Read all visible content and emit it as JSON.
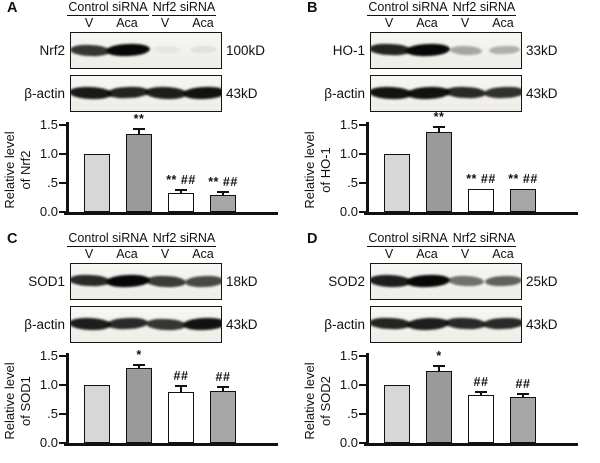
{
  "panels": [
    {
      "letter": "A",
      "groups": [
        "Control siRNA",
        "Nrf2 siRNA"
      ],
      "lanes": [
        "V",
        "Aca",
        "V",
        "Aca"
      ],
      "blots": [
        {
          "label": "Nrf2",
          "molecular_weight": "100kD",
          "band_intensities": [
            0.8,
            1.0,
            0.05,
            0.07
          ]
        },
        {
          "label": "β-actin",
          "molecular_weight": "43kD",
          "band_intensities": [
            0.92,
            0.88,
            0.9,
            0.95
          ]
        }
      ]
    },
    {
      "letter": "B",
      "groups": [
        "Control siRNA",
        "Nrf2 siRNA"
      ],
      "lanes": [
        "V",
        "Aca",
        "V",
        "Aca"
      ],
      "blots": [
        {
          "label": "HO-1",
          "molecular_weight": "33kD",
          "band_intensities": [
            0.88,
            1.0,
            0.32,
            0.28
          ]
        },
        {
          "label": "β-actin",
          "molecular_weight": "43kD",
          "band_intensities": [
            0.95,
            0.95,
            0.85,
            0.82
          ]
        }
      ]
    },
    {
      "letter": "C",
      "groups": [
        "Control siRNA",
        "Nrf2 siRNA"
      ],
      "lanes": [
        "V",
        "Aca",
        "V",
        "Aca"
      ],
      "blots": [
        {
          "label": "SOD1",
          "molecular_weight": "18kD",
          "band_intensities": [
            0.85,
            1.0,
            0.78,
            0.72
          ]
        },
        {
          "label": "β-actin",
          "molecular_weight": "43kD",
          "band_intensities": [
            0.9,
            0.85,
            0.8,
            0.95
          ]
        }
      ]
    },
    {
      "letter": "D",
      "groups": [
        "Control siRNA",
        "Nrf2 siRNA"
      ],
      "lanes": [
        "V",
        "Aca",
        "V",
        "Aca"
      ],
      "blots": [
        {
          "label": "SOD2",
          "molecular_weight": "25kD",
          "band_intensities": [
            0.9,
            1.0,
            0.55,
            0.62
          ]
        },
        {
          "label": "β-actin",
          "molecular_weight": "43kD",
          "band_intensities": [
            0.88,
            0.9,
            0.85,
            0.85
          ]
        }
      ]
    }
  ],
  "chart_data": [
    {
      "type": "bar",
      "panel": "A",
      "ylabel": "Relative level of Nrf2",
      "ylabel_line1": "Relative level",
      "ylabel_line2": "of Nrf2",
      "categories": [
        "V (Control siRNA)",
        "Aca (Control siRNA)",
        "V (Nrf2 siRNA)",
        "Aca (Nrf2 siRNA)"
      ],
      "values": [
        1.0,
        1.35,
        0.32,
        0.3
      ],
      "errors": [
        0,
        0.08,
        0.06,
        0.04
      ],
      "significance": [
        "",
        "**",
        "** ##",
        "** ##"
      ],
      "yticks": [
        "0.0",
        ".5",
        "1.0",
        "1.5"
      ],
      "ytick_values": [
        0,
        0.5,
        1.0,
        1.5
      ],
      "ylim": [
        0,
        1.6
      ],
      "grid": false,
      "legend": false,
      "bar_colors": [
        "#d7d7d7",
        "#9a9a9a",
        "#ffffff",
        "#a6a6a6"
      ],
      "bar_border_color": "#111111"
    },
    {
      "type": "bar",
      "panel": "B",
      "ylabel": "Relative level of HO-1",
      "ylabel_line1": "Relative level",
      "ylabel_line2": "of HO-1",
      "categories": [
        "V (Control siRNA)",
        "Aca (Control siRNA)",
        "V (Nrf2 siRNA)",
        "Aca (Nrf2 siRNA)"
      ],
      "values": [
        1.0,
        1.38,
        0.4,
        0.39
      ],
      "errors": [
        0,
        0.08,
        0,
        0.01
      ],
      "significance": [
        "",
        "**",
        "** ##",
        "** ##"
      ],
      "yticks": [
        "0.0",
        ".5",
        "1.0",
        "1.5"
      ],
      "ytick_values": [
        0,
        0.5,
        1.0,
        1.5
      ],
      "ylim": [
        0,
        1.6
      ],
      "grid": false,
      "legend": false,
      "bar_colors": [
        "#d7d7d7",
        "#9a9a9a",
        "#ffffff",
        "#a6a6a6"
      ],
      "bar_border_color": "#111111"
    },
    {
      "type": "bar",
      "panel": "C",
      "ylabel": "Relative level of SOD1",
      "ylabel_line1": "Relative level",
      "ylabel_line2": "of SOD1",
      "categories": [
        "V (Control siRNA)",
        "Aca (Control siRNA)",
        "V (Nrf2 siRNA)",
        "Aca (Nrf2 siRNA)"
      ],
      "values": [
        1.0,
        1.3,
        0.88,
        0.89
      ],
      "errors": [
        0,
        0.05,
        0.1,
        0.07
      ],
      "significance": [
        "",
        "*",
        "##",
        "##"
      ],
      "yticks": [
        "0.0",
        ".5",
        "1.0",
        "1.5"
      ],
      "ytick_values": [
        0,
        0.5,
        1.0,
        1.5
      ],
      "ylim": [
        0,
        1.6
      ],
      "grid": false,
      "legend": false,
      "bar_colors": [
        "#d7d7d7",
        "#9a9a9a",
        "#ffffff",
        "#a6a6a6"
      ],
      "bar_border_color": "#111111"
    },
    {
      "type": "bar",
      "panel": "D",
      "ylabel": "Relative level of SOD2",
      "ylabel_line1": "Relative level",
      "ylabel_line2": "of SOD2",
      "categories": [
        "V (Control siRNA)",
        "Aca (Control siRNA)",
        "V (Nrf2 siRNA)",
        "Aca (Nrf2 siRNA)"
      ],
      "values": [
        1.0,
        1.24,
        0.83,
        0.8
      ],
      "errors": [
        0,
        0.08,
        0.05,
        0.04
      ],
      "significance": [
        "",
        "*",
        "##",
        "##"
      ],
      "yticks": [
        "0.0",
        ".5",
        "1.0",
        "1.5"
      ],
      "ytick_values": [
        0,
        0.5,
        1.0,
        1.5
      ],
      "ylim": [
        0,
        1.6
      ],
      "grid": false,
      "legend": false,
      "bar_colors": [
        "#d7d7d7",
        "#9a9a9a",
        "#ffffff",
        "#a6a6a6"
      ],
      "bar_border_color": "#111111"
    }
  ]
}
